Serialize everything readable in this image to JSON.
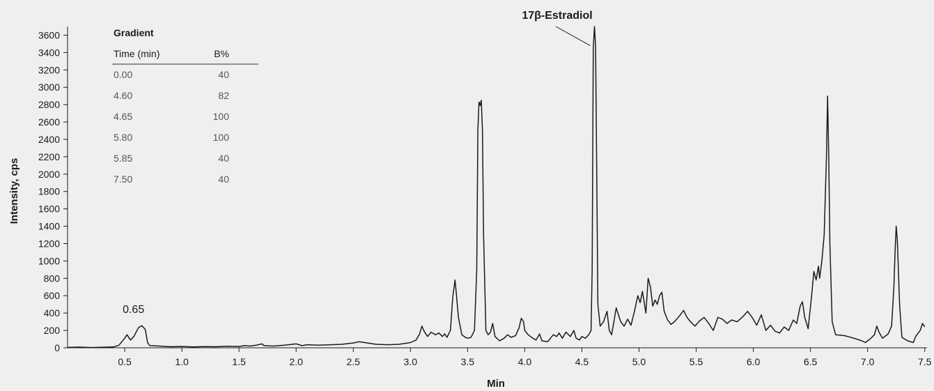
{
  "chart_data": {
    "type": "line",
    "xlabel": "Min",
    "ylabel": "Intensity, cps",
    "xlim": [
      0,
      7.52
    ],
    "ylim": [
      0,
      3700
    ],
    "x_ticks": [
      "0.5",
      "1.0",
      "1.5",
      "2.0",
      "2.5",
      "3.0",
      "3.5",
      "4.0",
      "4.5",
      "5.0",
      "5.5",
      "6.0",
      "6.5",
      "7.0",
      "7.5"
    ],
    "y_ticks": [
      "0",
      "200",
      "400",
      "600",
      "800",
      "1000",
      "1200",
      "1400",
      "1600",
      "1800",
      "2000",
      "2200",
      "2400",
      "2600",
      "2800",
      "3000",
      "3200",
      "3400",
      "3600"
    ],
    "line_color": "#1a1a1a",
    "series": [
      {
        "points": [
          [
            0.0,
            5
          ],
          [
            0.1,
            8
          ],
          [
            0.2,
            3
          ],
          [
            0.3,
            6
          ],
          [
            0.4,
            10
          ],
          [
            0.45,
            30
          ],
          [
            0.5,
            110
          ],
          [
            0.52,
            150
          ],
          [
            0.55,
            90
          ],
          [
            0.58,
            130
          ],
          [
            0.62,
            230
          ],
          [
            0.65,
            255
          ],
          [
            0.68,
            210
          ],
          [
            0.7,
            60
          ],
          [
            0.72,
            25
          ],
          [
            0.8,
            20
          ],
          [
            0.9,
            12
          ],
          [
            1.0,
            15
          ],
          [
            1.1,
            10
          ],
          [
            1.2,
            14
          ],
          [
            1.3,
            12
          ],
          [
            1.4,
            18
          ],
          [
            1.5,
            15
          ],
          [
            1.55,
            25
          ],
          [
            1.6,
            20
          ],
          [
            1.65,
            30
          ],
          [
            1.7,
            45
          ],
          [
            1.72,
            25
          ],
          [
            1.8,
            20
          ],
          [
            1.9,
            30
          ],
          [
            2.0,
            45
          ],
          [
            2.05,
            25
          ],
          [
            2.1,
            35
          ],
          [
            2.2,
            30
          ],
          [
            2.3,
            35
          ],
          [
            2.4,
            40
          ],
          [
            2.5,
            55
          ],
          [
            2.55,
            70
          ],
          [
            2.6,
            60
          ],
          [
            2.7,
            40
          ],
          [
            2.8,
            35
          ],
          [
            2.9,
            40
          ],
          [
            3.0,
            60
          ],
          [
            3.05,
            90
          ],
          [
            3.08,
            160
          ],
          [
            3.1,
            250
          ],
          [
            3.12,
            190
          ],
          [
            3.15,
            130
          ],
          [
            3.18,
            180
          ],
          [
            3.22,
            150
          ],
          [
            3.25,
            170
          ],
          [
            3.28,
            130
          ],
          [
            3.3,
            160
          ],
          [
            3.32,
            120
          ],
          [
            3.35,
            200
          ],
          [
            3.37,
            580
          ],
          [
            3.39,
            780
          ],
          [
            3.4,
            650
          ],
          [
            3.42,
            350
          ],
          [
            3.45,
            150
          ],
          [
            3.48,
            120
          ],
          [
            3.5,
            110
          ],
          [
            3.53,
            120
          ],
          [
            3.56,
            200
          ],
          [
            3.58,
            900
          ],
          [
            3.59,
            2500
          ],
          [
            3.6,
            2830
          ],
          [
            3.61,
            2790
          ],
          [
            3.62,
            2850
          ],
          [
            3.63,
            2500
          ],
          [
            3.64,
            1300
          ],
          [
            3.66,
            200
          ],
          [
            3.68,
            150
          ],
          [
            3.7,
            180
          ],
          [
            3.72,
            280
          ],
          [
            3.74,
            130
          ],
          [
            3.78,
            80
          ],
          [
            3.82,
            110
          ],
          [
            3.85,
            150
          ],
          [
            3.88,
            120
          ],
          [
            3.92,
            140
          ],
          [
            3.95,
            230
          ],
          [
            3.97,
            340
          ],
          [
            3.99,
            300
          ],
          [
            4.0,
            200
          ],
          [
            4.03,
            150
          ],
          [
            4.07,
            110
          ],
          [
            4.1,
            90
          ],
          [
            4.13,
            160
          ],
          [
            4.15,
            80
          ],
          [
            4.2,
            70
          ],
          [
            4.25,
            150
          ],
          [
            4.28,
            130
          ],
          [
            4.3,
            170
          ],
          [
            4.33,
            110
          ],
          [
            4.36,
            180
          ],
          [
            4.4,
            130
          ],
          [
            4.43,
            200
          ],
          [
            4.45,
            110
          ],
          [
            4.48,
            90
          ],
          [
            4.5,
            130
          ],
          [
            4.53,
            110
          ],
          [
            4.56,
            150
          ],
          [
            4.58,
            200
          ],
          [
            4.59,
            900
          ],
          [
            4.6,
            3450
          ],
          [
            4.61,
            3700
          ],
          [
            4.62,
            3480
          ],
          [
            4.63,
            2000
          ],
          [
            4.64,
            500
          ],
          [
            4.66,
            250
          ],
          [
            4.69,
            300
          ],
          [
            4.72,
            420
          ],
          [
            4.74,
            200
          ],
          [
            4.76,
            150
          ],
          [
            4.78,
            300
          ],
          [
            4.8,
            460
          ],
          [
            4.82,
            380
          ],
          [
            4.84,
            300
          ],
          [
            4.87,
            250
          ],
          [
            4.9,
            330
          ],
          [
            4.93,
            260
          ],
          [
            4.96,
            420
          ],
          [
            4.99,
            600
          ],
          [
            5.01,
            520
          ],
          [
            5.03,
            650
          ],
          [
            5.06,
            400
          ],
          [
            5.08,
            800
          ],
          [
            5.1,
            700
          ],
          [
            5.12,
            480
          ],
          [
            5.14,
            550
          ],
          [
            5.16,
            500
          ],
          [
            5.18,
            600
          ],
          [
            5.2,
            640
          ],
          [
            5.22,
            420
          ],
          [
            5.25,
            320
          ],
          [
            5.28,
            270
          ],
          [
            5.31,
            300
          ],
          [
            5.35,
            360
          ],
          [
            5.39,
            430
          ],
          [
            5.42,
            350
          ],
          [
            5.45,
            300
          ],
          [
            5.49,
            250
          ],
          [
            5.53,
            310
          ],
          [
            5.57,
            350
          ],
          [
            5.61,
            280
          ],
          [
            5.65,
            200
          ],
          [
            5.69,
            350
          ],
          [
            5.73,
            330
          ],
          [
            5.77,
            280
          ],
          [
            5.81,
            320
          ],
          [
            5.86,
            300
          ],
          [
            5.91,
            360
          ],
          [
            5.95,
            420
          ],
          [
            5.99,
            350
          ],
          [
            6.03,
            260
          ],
          [
            6.07,
            380
          ],
          [
            6.11,
            200
          ],
          [
            6.15,
            260
          ],
          [
            6.19,
            190
          ],
          [
            6.23,
            170
          ],
          [
            6.27,
            240
          ],
          [
            6.31,
            200
          ],
          [
            6.35,
            320
          ],
          [
            6.38,
            280
          ],
          [
            6.41,
            480
          ],
          [
            6.43,
            530
          ],
          [
            6.45,
            350
          ],
          [
            6.48,
            220
          ],
          [
            6.51,
            600
          ],
          [
            6.53,
            880
          ],
          [
            6.55,
            780
          ],
          [
            6.57,
            940
          ],
          [
            6.58,
            800
          ],
          [
            6.6,
            1000
          ],
          [
            6.62,
            1300
          ],
          [
            6.64,
            2200
          ],
          [
            6.65,
            2900
          ],
          [
            6.66,
            2200
          ],
          [
            6.67,
            1200
          ],
          [
            6.69,
            300
          ],
          [
            6.72,
            150
          ],
          [
            6.8,
            140
          ],
          [
            6.88,
            110
          ],
          [
            6.95,
            80
          ],
          [
            6.98,
            60
          ],
          [
            7.02,
            100
          ],
          [
            7.06,
            150
          ],
          [
            7.08,
            250
          ],
          [
            7.1,
            180
          ],
          [
            7.13,
            110
          ],
          [
            7.18,
            160
          ],
          [
            7.21,
            250
          ],
          [
            7.23,
            700
          ],
          [
            7.24,
            1100
          ],
          [
            7.25,
            1400
          ],
          [
            7.26,
            1250
          ],
          [
            7.28,
            500
          ],
          [
            7.3,
            120
          ],
          [
            7.35,
            80
          ],
          [
            7.4,
            60
          ],
          [
            7.42,
            130
          ],
          [
            7.46,
            200
          ],
          [
            7.48,
            280
          ],
          [
            7.5,
            240
          ]
        ]
      }
    ],
    "annotations": [
      {
        "text": "0.65",
        "x": 0.65,
        "y": 255
      },
      {
        "text": "17β-Estradiol",
        "x": 4.61,
        "y": 3700
      }
    ],
    "gradient_table": {
      "title": "Gradient",
      "headers": [
        "Time (min)",
        "B%"
      ],
      "rows": [
        [
          "0.00",
          "40"
        ],
        [
          "4.60",
          "82"
        ],
        [
          "4.65",
          "100"
        ],
        [
          "5.80",
          "100"
        ],
        [
          "5.85",
          "40"
        ],
        [
          "7.50",
          "40"
        ]
      ]
    }
  }
}
